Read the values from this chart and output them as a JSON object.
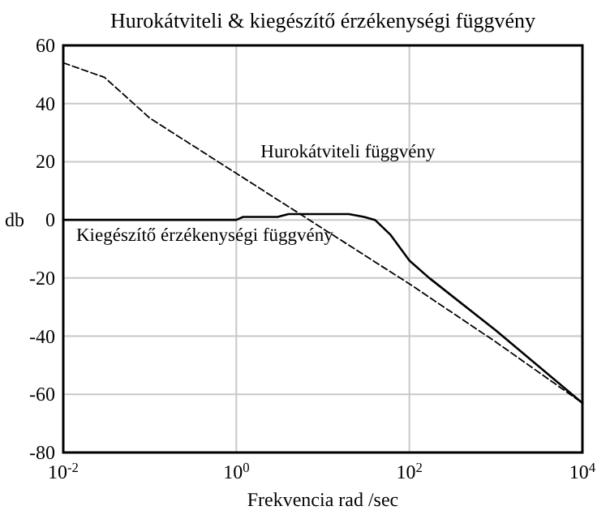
{
  "chart_data": {
    "type": "line",
    "title": "Hurokátviteli & kiegészítő érzékenységi függvény",
    "xlabel": "Frekvencia  rad /sec",
    "ylabel": "db",
    "log": "x",
    "grid": true,
    "xlim": [
      0.01,
      10000
    ],
    "xticks": [
      {
        "value": 0.01,
        "label": "10$^{-2}$"
      },
      {
        "value": 1,
        "label": "10$^{0}$"
      },
      {
        "value": 100,
        "label": "10$^{2}$"
      },
      {
        "value": 10000,
        "label": "10$^{4}$"
      }
    ],
    "ylim": [
      -80,
      60
    ],
    "yticks": [
      -80,
      -60,
      -40,
      -20,
      0,
      20,
      40,
      60
    ],
    "series": [
      {
        "name": "Hurokátviteli függvény",
        "color": "#000000",
        "line_style": "dashed",
        "x": [
          0.01,
          0.03,
          0.1,
          1,
          10,
          100,
          1000,
          10000
        ],
        "values": [
          54,
          49,
          35,
          16,
          -3,
          -22,
          -42,
          -63
        ]
      },
      {
        "name": "Kiegészítő érzékenységi függvény",
        "color": "#000000",
        "line_style": "solid",
        "x": [
          0.01,
          1,
          1.2,
          3,
          4,
          20,
          30,
          40,
          60,
          100,
          170,
          1000,
          10000
        ],
        "values": [
          0,
          0,
          1,
          1,
          2,
          2,
          1,
          0,
          -5,
          -14,
          -20,
          -38,
          -63
        ]
      }
    ]
  }
}
